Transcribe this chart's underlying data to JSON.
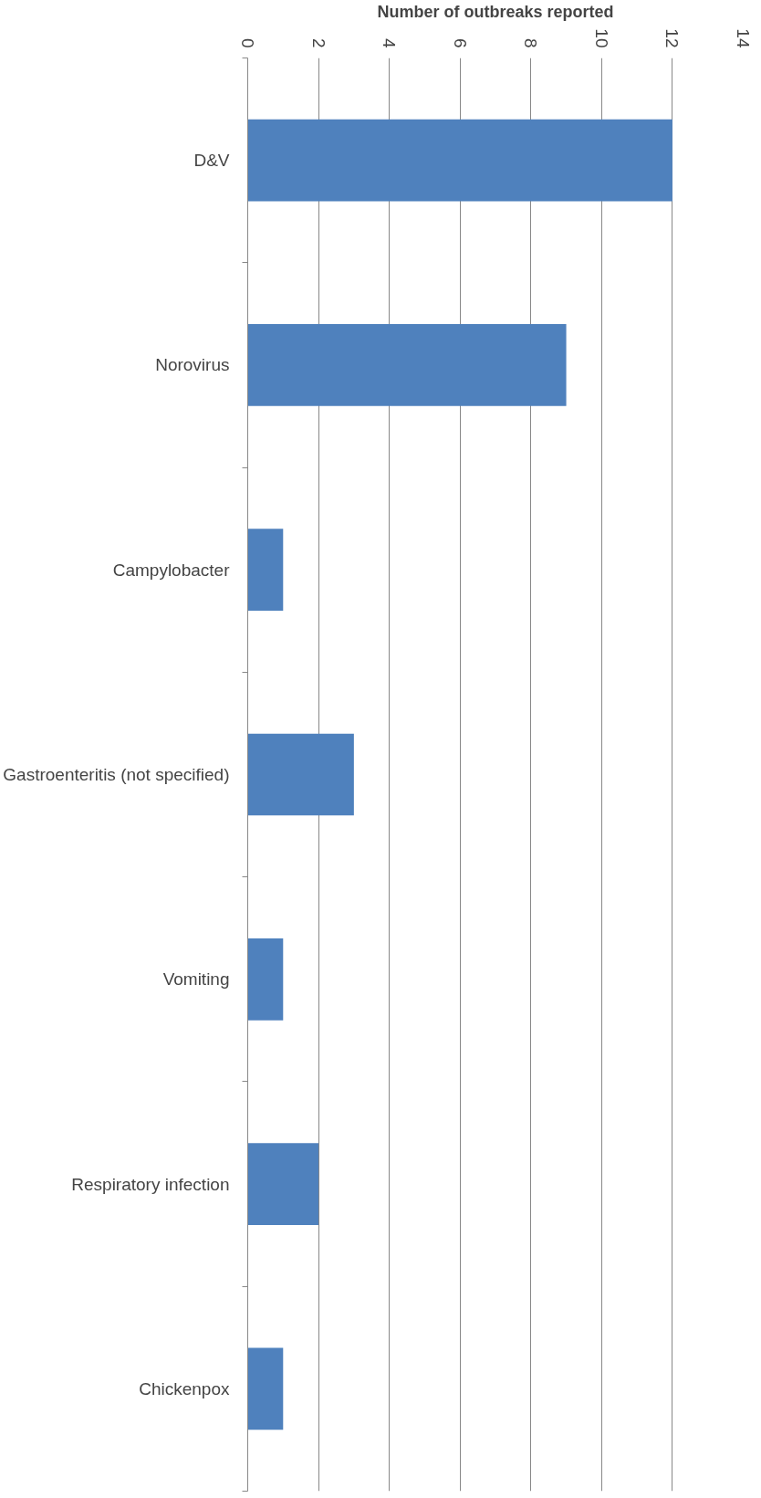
{
  "chart_data": {
    "type": "bar",
    "orientation": "horizontal",
    "xlabel": "Number of outbreaks reported",
    "categories": [
      "D&V",
      "Norovirus",
      "Campylobacter",
      "Gastroenteritis (not specified)",
      "Vomiting",
      "Respiratory infection",
      "Chickenpox"
    ],
    "values": [
      12,
      9,
      1,
      3,
      1,
      2,
      1
    ],
    "color": "#4f81bd",
    "xlim": [
      0,
      14
    ],
    "xticks": [
      0,
      2,
      4,
      6,
      8,
      10,
      12,
      14
    ],
    "grid": "x"
  }
}
